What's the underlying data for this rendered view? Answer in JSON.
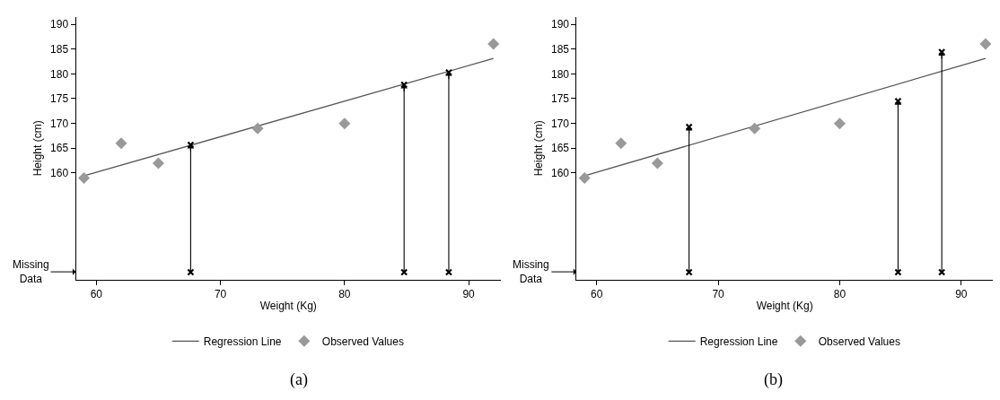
{
  "chart_data": [
    {
      "type": "scatter",
      "title": "(a)",
      "xlabel": "Weight (Kg)",
      "ylabel": "Height (cm)",
      "xlim": [
        58.35,
        92.6
      ],
      "xticks": [
        60,
        70,
        80,
        90
      ],
      "ylim": [
        138.5,
        191.5
      ],
      "yticks": [
        160,
        165,
        170,
        175,
        180,
        185,
        190
      ],
      "grid": false,
      "legend": "bottom",
      "series": [
        {
          "name": "Regression Line",
          "type": "line",
          "color": "#555555",
          "marker": "none",
          "line_style": "solid",
          "x": [
            59.1,
            92
          ],
          "values": [
            159.5,
            183.1
          ]
        },
        {
          "name": "Observed Values",
          "color": "#999999",
          "marker": "diamond",
          "x": [
            59,
            62,
            65,
            73,
            80,
            92
          ],
          "values": [
            159,
            166,
            162,
            169,
            170,
            186
          ]
        },
        {
          "color": "#000000",
          "marker": "cross",
          "x": [
            67.6,
            84.8,
            88.4
          ],
          "values": [
            140,
            140,
            140
          ]
        },
        {
          "color": "#000000",
          "marker": "cross",
          "x": [
            67.6,
            84.8,
            88.4
          ],
          "values": [
            165.7,
            177.8,
            180.3
          ],
          "errors": [
            [
              140,
              165.7
            ],
            [
              140,
              177.8
            ],
            [
              140,
              180.3
            ]
          ]
        }
      ],
      "annotations": [
        "Missing\nData"
      ]
    },
    {
      "type": "scatter",
      "title": "(b)",
      "xlabel": "Weight (Kg)",
      "ylabel": "Height (cm)",
      "xlim": [
        58.35,
        92.6
      ],
      "xticks": [
        60,
        70,
        80,
        90
      ],
      "ylim": [
        138.5,
        191.5
      ],
      "yticks": [
        160,
        165,
        170,
        175,
        180,
        185,
        190
      ],
      "grid": false,
      "legend": "bottom",
      "series": [
        {
          "name": "Regression Line",
          "type": "line",
          "color": "#555555",
          "marker": "none",
          "line_style": "solid",
          "x": [
            59.1,
            92
          ],
          "values": [
            159.5,
            183.1
          ]
        },
        {
          "name": "Observed Values",
          "color": "#999999",
          "marker": "diamond",
          "x": [
            59,
            62,
            65,
            73,
            80,
            92
          ],
          "values": [
            159,
            166,
            162,
            169,
            170,
            186
          ]
        },
        {
          "color": "#000000",
          "marker": "cross",
          "x": [
            67.6,
            84.8,
            88.4
          ],
          "values": [
            140,
            140,
            140
          ]
        },
        {
          "color": "#000000",
          "marker": "cross",
          "x": [
            67.6,
            84.8,
            88.4
          ],
          "values": [
            169.3,
            174.5,
            184.4
          ],
          "errors": [
            [
              140,
              169.3
            ],
            [
              140,
              174.5
            ],
            [
              140,
              184.4
            ]
          ]
        }
      ],
      "annotations": [
        "Missing\nData"
      ]
    }
  ]
}
